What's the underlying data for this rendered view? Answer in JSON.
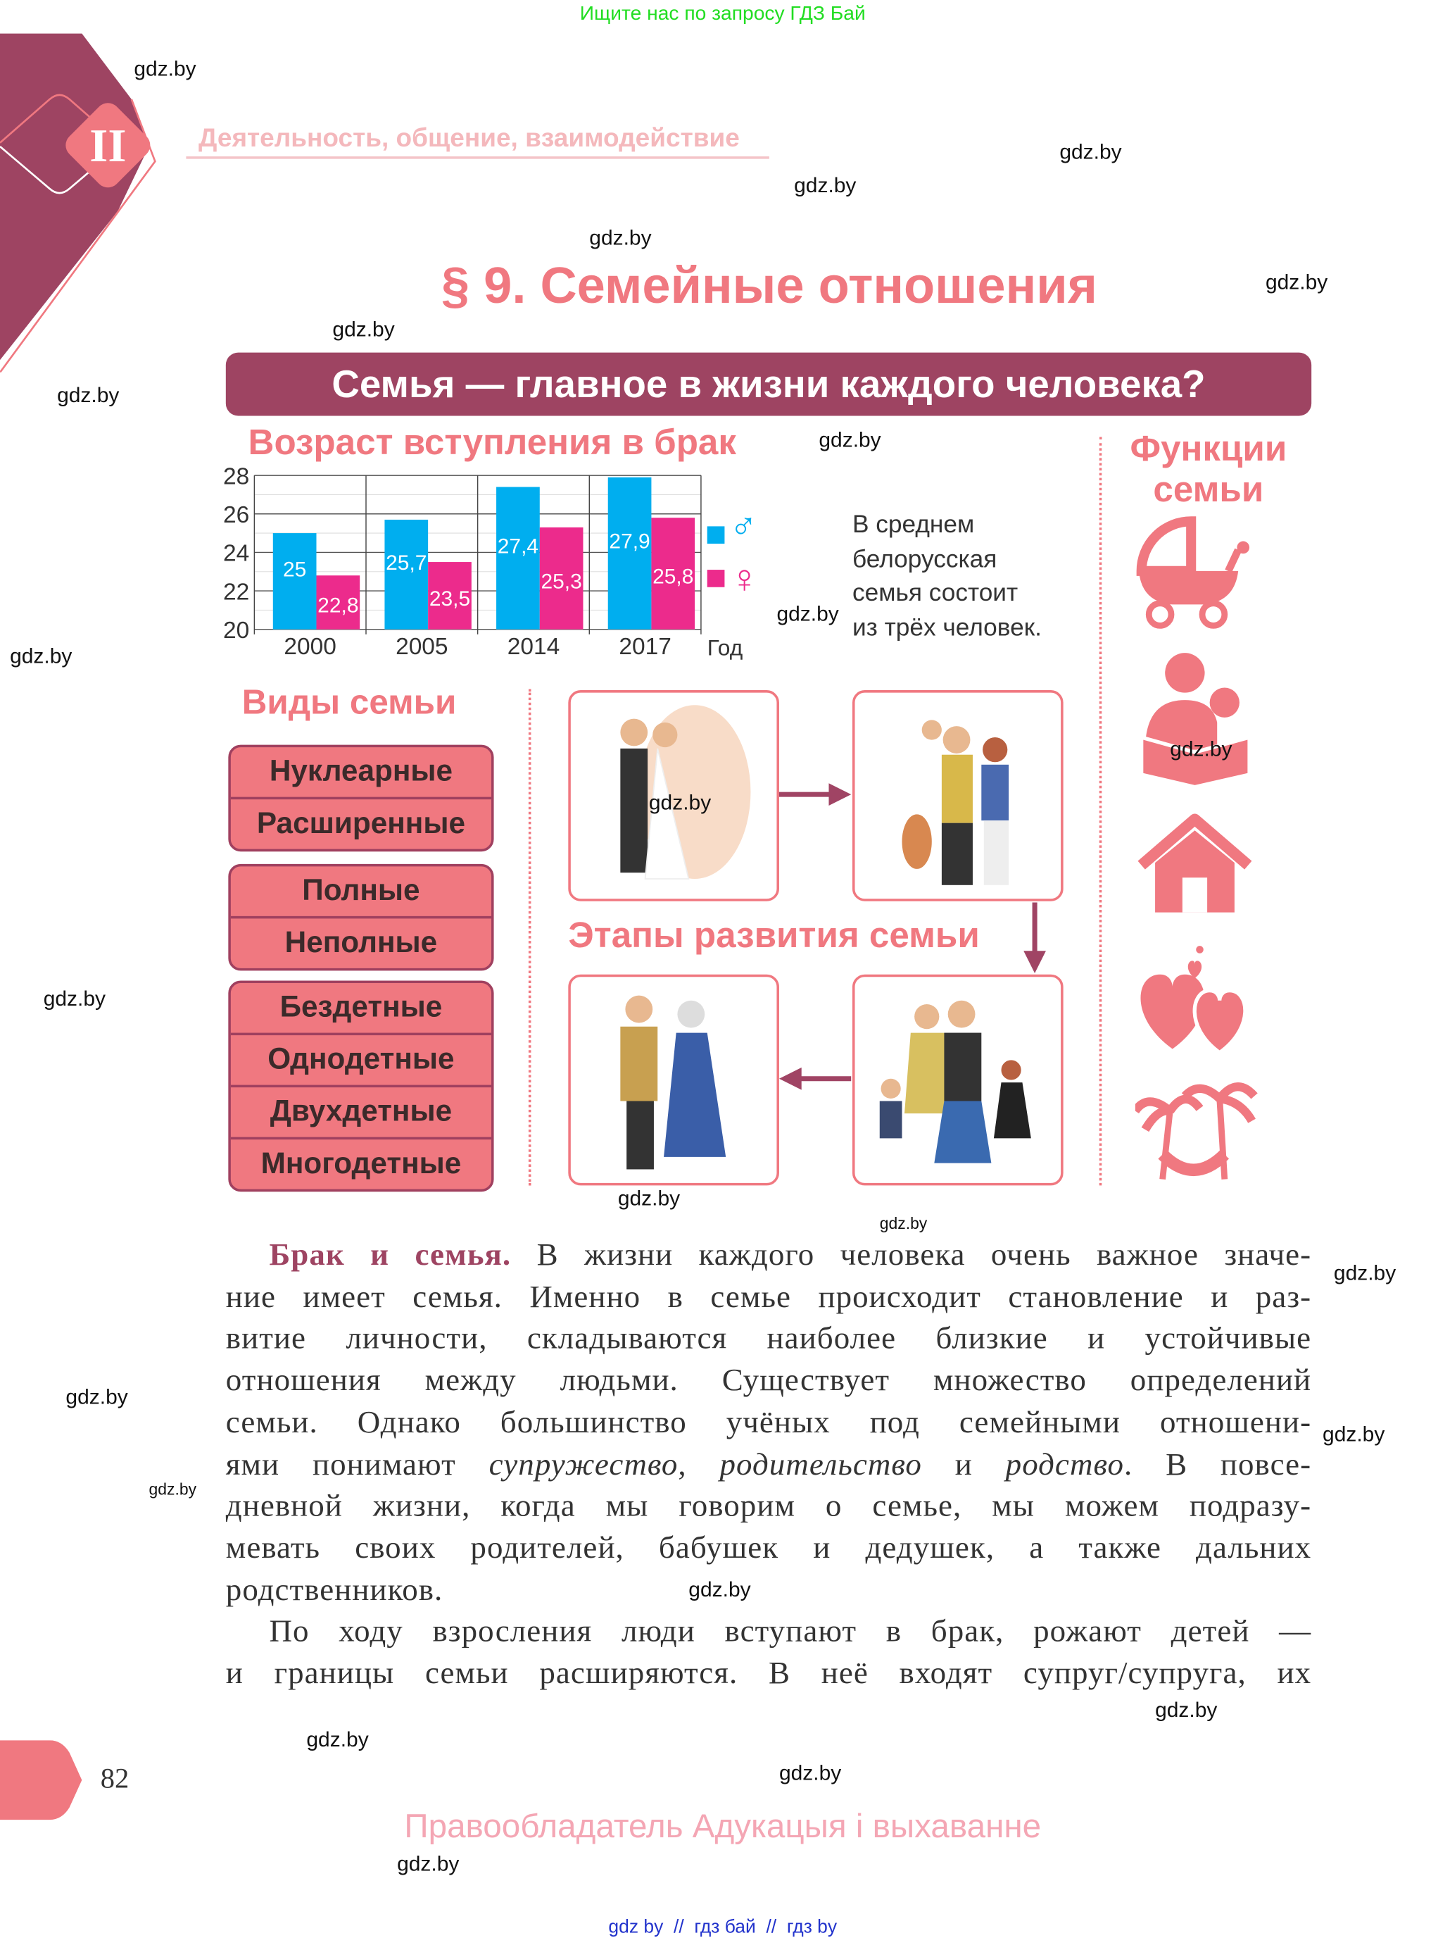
{
  "top_banner": "Ищите нас по запросу ГДЗ Бай",
  "chapter": {
    "numeral": "II",
    "title": "Деятельность, общение, взаимодействие"
  },
  "title": "§ 9. Семейные отношения",
  "question_banner": "Семья — главное в жизни каждого человека?",
  "watermark": "gdz.by",
  "colors": {
    "accent_pink": "#f07880",
    "dark_plum": "#9e4462",
    "male_blue": "#00aeef",
    "female_magenta": "#ec2b8c",
    "watermark_green": "#22dd22",
    "footer_blue": "#2233cc"
  },
  "chart_data": {
    "type": "bar",
    "title": "Возраст вступления в брак",
    "categories": [
      "2000",
      "2005",
      "2014",
      "2017"
    ],
    "xlabel": "Год",
    "ylim": [
      20,
      28
    ],
    "yticks": [
      "20",
      "22",
      "24",
      "26",
      "28"
    ],
    "grid": true,
    "legend_placement": "right",
    "series": [
      {
        "name": "♂",
        "color": "#00aeef",
        "values": [
          25,
          25.7,
          27.4,
          27.9
        ],
        "labels": [
          "25",
          "25,7",
          "27,4",
          "27,9"
        ]
      },
      {
        "name": "♀",
        "color": "#ec2b8c",
        "values": [
          22.8,
          23.5,
          25.3,
          25.8
        ],
        "labels": [
          "22,8",
          "23,5",
          "25,3",
          "25,8"
        ]
      }
    ]
  },
  "avg_note": [
    "В среднем",
    "белорусская",
    "семья состоит",
    "из трёх человек."
  ],
  "family_types": {
    "title": "Виды семьи",
    "groups": [
      [
        "Нуклеарные",
        "Расширенные"
      ],
      [
        "Полные",
        "Неполные"
      ],
      [
        "Бездетные",
        "Однодетные",
        "Двухдетные",
        "Многодетные"
      ]
    ]
  },
  "stages_title": "Этапы развития семьи",
  "stages": [
    "wedding-couple",
    "young-family-with-baby-and-dog",
    "family-with-children",
    "elderly-couple"
  ],
  "functions": {
    "title_line1": "Функции",
    "title_line2": "семьи",
    "icons": [
      "stroller-icon",
      "reading-parent-child-icon",
      "house-icon",
      "hearts-icon",
      "palm-hammock-icon"
    ]
  },
  "body_lines": [
    [
      {
        "t": "Брак и семья.",
        "s": "b"
      },
      {
        "t": " В жизни каждого человека очень важное значе-"
      }
    ],
    [
      {
        "t": "ние имеет семья. Именно в семье происходит становление и раз-"
      }
    ],
    [
      {
        "t": "витие личности, складываются наиболее близкие и устойчивые"
      }
    ],
    [
      {
        "t": "отношения между людьми. Существует множество определений"
      }
    ],
    [
      {
        "t": "семьи. Однако большинство учёных под семейными отношени-"
      }
    ],
    [
      {
        "t": "ями понимают "
      },
      {
        "t": "супружество",
        "s": "i"
      },
      {
        "t": ", "
      },
      {
        "t": "родительство",
        "s": "i"
      },
      {
        "t": " и "
      },
      {
        "t": "родство",
        "s": "i"
      },
      {
        "t": ". В повсе-"
      }
    ],
    [
      {
        "t": "дневной жизни, когда мы говорим о семье, мы можем подразу-"
      }
    ],
    [
      {
        "t": "мевать своих родителей, бабушек и дедушек, а также дальних"
      }
    ],
    [
      {
        "t": "родственников."
      }
    ],
    [
      {
        "t": "По ходу взросления люди вступают в брак, рожают детей —"
      }
    ],
    [
      {
        "t": "и границы семьи расширяются. В неё входят супруг/супруга, их"
      }
    ]
  ],
  "page_number": "82",
  "footer": "Правообладатель Адукацыя і выхаванне",
  "bottom_links": "gdz by  //  гдз бай  //  гдз by"
}
